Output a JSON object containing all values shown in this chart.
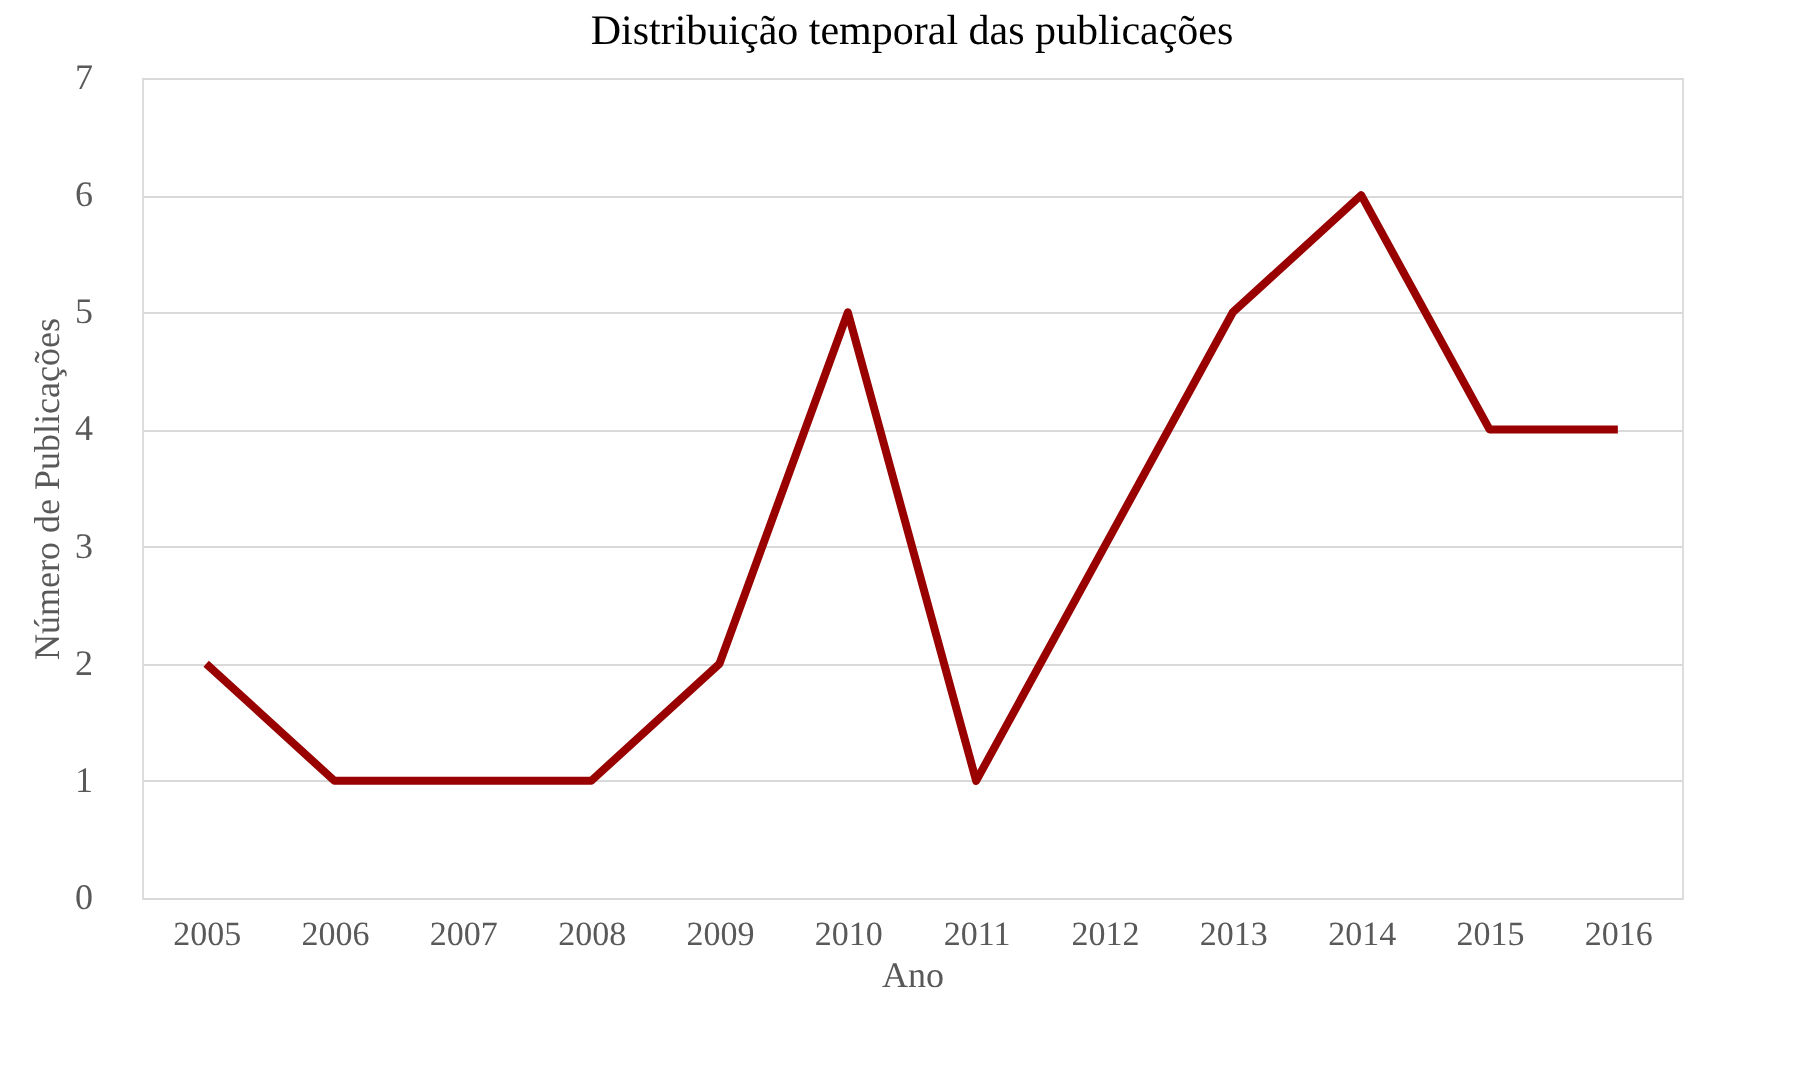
{
  "chart_data": {
    "type": "line",
    "title": "Distribuição temporal das publicações",
    "xlabel": "Ano",
    "ylabel": "Número de Publicações",
    "categories": [
      "2005",
      "2006",
      "2007",
      "2008",
      "2009",
      "2010",
      "2011",
      "2012",
      "2013",
      "2014",
      "2015",
      "2016"
    ],
    "series": [
      {
        "color": "#990000",
        "values": [
          2,
          1,
          1,
          1,
          2,
          5,
          1,
          3,
          5,
          6,
          4,
          4
        ]
      }
    ],
    "ylim": [
      0,
      7
    ],
    "yticks": [
      0,
      1,
      2,
      3,
      4,
      5,
      6,
      7
    ],
    "grid": "y",
    "legend": false,
    "marker": "none",
    "line_style": "solid"
  }
}
